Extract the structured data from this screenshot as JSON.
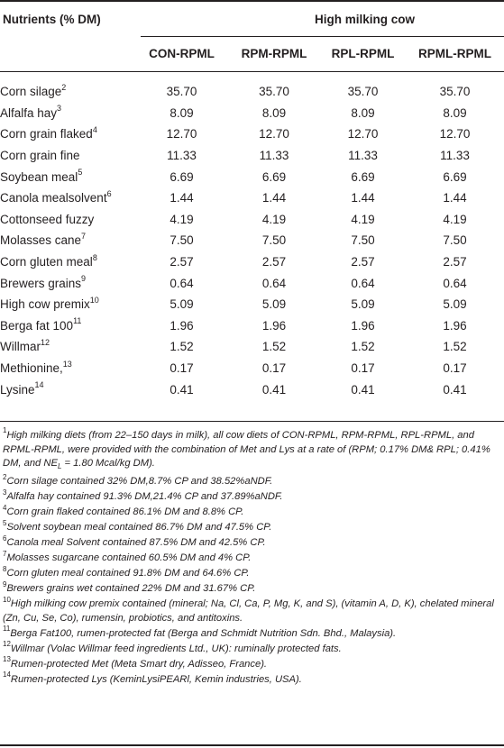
{
  "header": {
    "row_label": "Nutrients (% DM)",
    "group_label": "High milking cow",
    "columns": [
      "CON-RPML",
      "RPM-RPML",
      "RPL-RPML",
      "RPML-RPML"
    ]
  },
  "rows": [
    {
      "name": "Corn silage",
      "sup": "2",
      "values": [
        "35.70",
        "35.70",
        "35.70",
        "35.70"
      ]
    },
    {
      "name": "Alfalfa hay",
      "sup": "3",
      "values": [
        "8.09",
        "8.09",
        "8.09",
        "8.09"
      ]
    },
    {
      "name": "Corn grain flaked",
      "sup": "4",
      "values": [
        "12.70",
        "12.70",
        "12.70",
        "12.70"
      ]
    },
    {
      "name": "Corn grain fine",
      "sup": "",
      "values": [
        "11.33",
        "11.33",
        "11.33",
        "11.33"
      ]
    },
    {
      "name": "Soybean meal",
      "sup": "5",
      "values": [
        "6.69",
        "6.69",
        "6.69",
        "6.69"
      ]
    },
    {
      "name": "Canola mealsolvent",
      "sup": "6",
      "values": [
        "1.44",
        "1.44",
        "1.44",
        "1.44"
      ]
    },
    {
      "name": "Cottonseed fuzzy",
      "sup": "",
      "values": [
        "4.19",
        "4.19",
        "4.19",
        "4.19"
      ]
    },
    {
      "name": "Molasses cane",
      "sup": "7",
      "values": [
        "7.50",
        "7.50",
        "7.50",
        "7.50"
      ]
    },
    {
      "name": "Corn gluten meal",
      "sup": "8",
      "values": [
        "2.57",
        "2.57",
        "2.57",
        "2.57"
      ]
    },
    {
      "name": "Brewers grains",
      "sup": "9",
      "values": [
        "0.64",
        "0.64",
        "0.64",
        "0.64"
      ]
    },
    {
      "name": "High cow premix",
      "sup": "10",
      "values": [
        "5.09",
        "5.09",
        "5.09",
        "5.09"
      ]
    },
    {
      "name": "Berga fat 100",
      "sup": "11",
      "values": [
        "1.96",
        "1.96",
        "1.96",
        "1.96"
      ]
    },
    {
      "name": "Willmar",
      "sup": "12",
      "values": [
        "1.52",
        "1.52",
        "1.52",
        "1.52"
      ]
    },
    {
      "name": "Methionine,",
      "sup": "13",
      "values": [
        "0.17",
        "0.17",
        "0.17",
        "0.17"
      ]
    },
    {
      "name": "Lysine",
      "sup": "14",
      "values": [
        "0.41",
        "0.41",
        "0.41",
        "0.41"
      ]
    }
  ],
  "footnotes": [
    {
      "sup": "1",
      "text": "High milking diets (from 22–150 days in milk), all cow diets of CON-RPML, RPM-RPML, RPL-RPML, and RPML-RPML, were provided with the combination of Met and Lys at a rate of (RPM; 0.17% DM& RPL; 0.41% DM, and NE",
      "sub": "L",
      "tail": " = 1.80 Mcal/kg DM)."
    },
    {
      "sup": "2",
      "text": "Corn silage contained 32% DM,8.7% CP and 38.52%aNDF."
    },
    {
      "sup": "3",
      "text": "Alfalfa hay contained 91.3% DM,21.4% CP and 37.89%aNDF."
    },
    {
      "sup": "4",
      "text": "Corn grain flaked contained 86.1% DM and 8.8% CP."
    },
    {
      "sup": "5",
      "text": "Solvent soybean meal contained 86.7% DM and 47.5% CP."
    },
    {
      "sup": "6",
      "text": "Canola meal Solvent contained 87.5% DM and 42.5% CP."
    },
    {
      "sup": "7",
      "text": "Molasses sugarcane contained 60.5% DM and 4% CP."
    },
    {
      "sup": "8",
      "text": "Corn gluten meal contained 91.8% DM and 64.6% CP."
    },
    {
      "sup": "9",
      "text": "Brewers grains wet contained 22% DM and 31.67% CP."
    },
    {
      "sup": "10",
      "text": "High milking cow premix contained (mineral; Na, Cl, Ca, P, Mg, K, and S), (vitamin A, D, K), chelated mineral (Zn, Cu, Se, Co), rumensin, probiotics, and antitoxins."
    },
    {
      "sup": "11",
      "text": "Berga Fat100, rumen-protected fat (Berga and Schmidt Nutrition Sdn. Bhd., Malaysia)."
    },
    {
      "sup": "12",
      "text": "Willmar (Volac Willmar feed ingredients Ltd., UK): ruminally protected fats."
    },
    {
      "sup": "13",
      "text": "Rumen-protected Met (Meta Smart dry, Adisseo, France)."
    },
    {
      "sup": "14",
      "text": "Rumen-protected Lys (KeminLysiPEARl, Kemin industries, USA)."
    }
  ]
}
